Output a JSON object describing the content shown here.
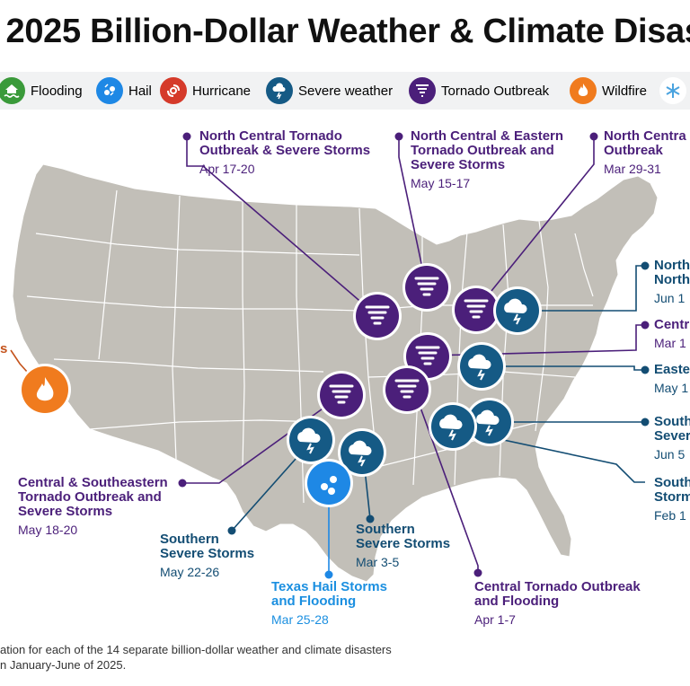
{
  "title": ". 2025 Billion-Dollar Weather & Climate Disast",
  "legend": [
    {
      "key": "flooding",
      "label": "Flooding",
      "color": "#3a9a3a",
      "icon": "flood-icon"
    },
    {
      "key": "hail",
      "label": "Hail",
      "color": "#1e88e5",
      "icon": "hail-icon"
    },
    {
      "key": "hurricane",
      "label": "Hurricane",
      "color": "#d53a2a",
      "icon": "hurricane-icon"
    },
    {
      "key": "severe",
      "label": "Severe weather",
      "color": "#155a85",
      "icon": "storm-cloud-icon"
    },
    {
      "key": "tornado",
      "label": "Tornado Outbreak",
      "color": "#4b1f7a",
      "icon": "tornado-icon"
    },
    {
      "key": "wildfire",
      "label": "Wildfire",
      "color": "#f07b1e",
      "icon": "fire-icon"
    },
    {
      "key": "winter",
      "label": "",
      "color": "#4aa3df",
      "icon": "snowflake-icon"
    }
  ],
  "events": [
    {
      "title": "North Central Tornado\nOutbreak & Severe Storms",
      "date": "Apr 17-20",
      "type": "tornado"
    },
    {
      "title": "North Central & Eastern\nTornado Outbreak and\nSevere Storms",
      "date": "May 15-17",
      "type": "tornado"
    },
    {
      "title": "North Centra\nOutbreak",
      "date": "Mar 29-31",
      "type": "tornado"
    },
    {
      "title": "North\nNorth",
      "date": "Jun 1",
      "type": "severe"
    },
    {
      "title": "Centr",
      "date": "Mar 1",
      "type": "tornado"
    },
    {
      "title": "Easte",
      "date": "May 1",
      "type": "severe"
    },
    {
      "title": "South\nSever",
      "date": "Jun 5",
      "type": "severe"
    },
    {
      "title": "South\nStorm",
      "date": "Feb 1",
      "type": "severe"
    },
    {
      "title": "Central & Southeastern\nTornado Outbreak and\nSevere Storms",
      "date": "May 18-20",
      "type": "tornado"
    },
    {
      "title": "Southern\nSevere Storms",
      "date": "May 22-26",
      "type": "severe"
    },
    {
      "title": "Southern\nSevere Storms",
      "date": "Mar 3-5",
      "type": "severe"
    },
    {
      "title": "Texas Hail Storms\nand Flooding",
      "date": "Mar 25-28",
      "type": "hail"
    },
    {
      "title": "Central Tornado Outbreak\nand Flooding",
      "date": "Apr 1-7",
      "type": "tornado"
    },
    {
      "title": "s",
      "date": "",
      "type": "wildfire"
    }
  ],
  "footnote": "ation for each of the 14 separate billion-dollar weather and climate disasters\nn January-June of 2025."
}
